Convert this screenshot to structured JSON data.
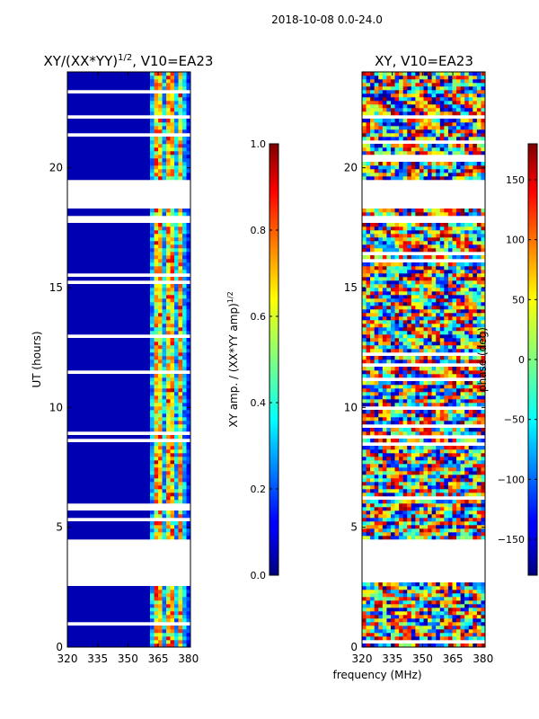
{
  "figure": {
    "suptitle": "2018-10-08 0.0-24.0",
    "shared_xlabel": "frequency (MHz)"
  },
  "chart_data": [
    {
      "type": "heatmap",
      "id": "amp",
      "title_main": "XY/(XX*YY)",
      "title_exp": "1/2",
      "title_tail": ", V10=EA23",
      "xlabel": "",
      "ylabel": "UT (hours)",
      "xlim": [
        320,
        381
      ],
      "ylim": [
        0,
        24
      ],
      "xticks": [
        320,
        335,
        350,
        365,
        380
      ],
      "yticks": [
        0,
        5,
        10,
        15,
        20
      ],
      "colorbar": {
        "label_main": "XY amp. / (XX*YY amp)",
        "label_exp": "1/2",
        "range": [
          0.0,
          1.0
        ],
        "ticks": [
          "0.0",
          "0.2",
          "0.4",
          "0.6",
          "0.8",
          "1.0"
        ],
        "tick_values": [
          0.0,
          0.2,
          0.4,
          0.6,
          0.8,
          1.0
        ],
        "colormap": "jet"
      },
      "data_gaps_ut": [
        [
          2.6,
          4.5
        ],
        [
          17.6,
          17.9
        ],
        [
          18.3,
          19.5
        ],
        [
          22.0,
          22.1
        ]
      ],
      "background_value": 0.05,
      "bright_band_mhz": [
        361,
        377
      ],
      "bright_columns_mhz": [
        363.5,
        366.5,
        369.5,
        372.5,
        375.5
      ]
    },
    {
      "type": "heatmap",
      "id": "phase",
      "title": "XY, V10=EA23",
      "xlabel": "frequency (MHz)",
      "ylabel": "",
      "xlim": [
        320,
        381
      ],
      "ylim": [
        0,
        24
      ],
      "xticks": [
        320,
        335,
        350,
        365,
        380
      ],
      "yticks": [
        0,
        5,
        10,
        15,
        20
      ],
      "colorbar": {
        "label": "phase (deg)",
        "range": [
          -180,
          180
        ],
        "ticks": [
          "−150",
          "−100",
          "−50",
          "0",
          "50",
          "100",
          "150"
        ],
        "tick_values": [
          -150,
          -100,
          -50,
          0,
          50,
          100,
          150
        ],
        "colormap": "jet"
      },
      "data_gaps_ut": [
        [
          2.6,
          4.5
        ],
        [
          17.6,
          17.9
        ],
        [
          18.3,
          19.5
        ],
        [
          22.0,
          22.1
        ]
      ]
    }
  ]
}
